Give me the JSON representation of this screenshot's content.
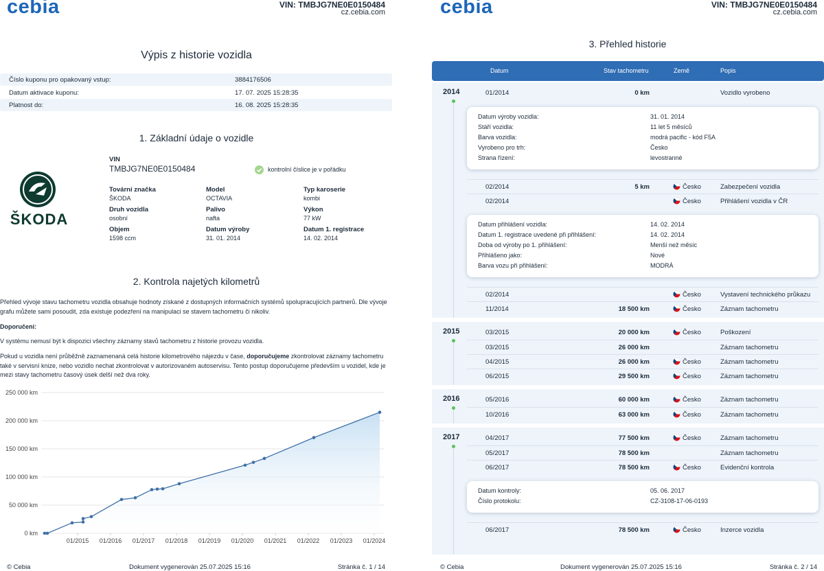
{
  "header": {
    "logo": "cebia",
    "vin": "VIN: TMBJG7NE0E0150484",
    "site": "cz.cebia.com"
  },
  "footer": {
    "copyright": "© Cebia",
    "generated": "Dokument vygenerován 25.07.2025 15:16",
    "pages": [
      "Stránka č. 1 / 14",
      "Stránka č. 2 / 14"
    ]
  },
  "page1": {
    "title": "Výpis z historie vozidla",
    "coupon_rows": [
      [
        "Číslo kuponu pro opakovaný vstup:",
        "3884176506"
      ],
      [
        "Datum aktivace kuponu:",
        "17. 07. 2025 15:28:35"
      ],
      [
        "Platnost do:",
        "16. 08. 2025 15:28:35"
      ]
    ],
    "section1": {
      "heading": "1. Základní údaje o vozidle",
      "logo_text": "ŠKODA",
      "vin_label": "VIN",
      "vin": "TMBJG7NE0E0150484",
      "vin_check": "kontrolní číslice je v pořádku",
      "fields": [
        {
          "label": "Tovární značka",
          "value": "ŠKODA"
        },
        {
          "label": "Model",
          "value": "OCTAVIA"
        },
        {
          "label": "Typ karoserie",
          "value": "kombi"
        },
        {
          "label": "Druh vozidla",
          "value": "osobní"
        },
        {
          "label": "Palivo",
          "value": "nafta"
        },
        {
          "label": "Výkon",
          "value": "77 kW"
        },
        {
          "label": "Objem",
          "value": "1598 ccm"
        },
        {
          "label": "Datum výroby",
          "value": "31. 01. 2014"
        },
        {
          "label": "Datum 1. registrace",
          "value": "14. 02. 2014"
        }
      ]
    },
    "section2": {
      "heading": "2. Kontrola najetých kilometrů",
      "p1": "Přehled vývoje stavu tachometru vozidla obsahuje hodnoty získané z dostupných informačních systémů spolupracujících partnerů. Dle vývoje grafu můžete sami posoudit, zda existuje podezření na manipulaci se stavem tachometru či nikoliv.",
      "recommendation": "Doporučení:",
      "p2": "V systému nemusí být k dispozici všechny záznamy stavů tachometru z historie provozu vozidla.",
      "p3": {
        "before": "Pokud u vozidla není průběžně zaznamenaná celá historie kilometrového nájezdu v čase, ",
        "bold": "doporučujeme",
        "after": " zkontrolovat záznamy tachometru také v servisní knize, nebo vozidlo nechat zkontrolovat v autorizovaném autoservisu. Tento postup doporučujeme především u vozidel, kde je mezi stavy tachometru časový úsek delší než dva roky."
      }
    }
  },
  "chart_data": {
    "type": "area",
    "x": [
      "01/2014",
      "02/2014",
      "11/2014",
      "03/2015",
      "03/2015",
      "06/2015",
      "05/2016",
      "10/2016",
      "04/2017",
      "06/2017",
      "08/2017",
      "02/2018",
      "02/2020",
      "05/2020",
      "09/2020",
      "03/2022",
      "03/2024"
    ],
    "values": [
      0,
      5,
      18500,
      20000,
      26000,
      29500,
      60000,
      63000,
      77500,
      78500,
      79000,
      88000,
      121000,
      126000,
      133000,
      170000,
      215000
    ],
    "color": "#3f6fa6",
    "xlim": [
      "01/2014",
      "04/2024"
    ],
    "xticks": [
      "01/2015",
      "01/2016",
      "01/2017",
      "01/2018",
      "01/2019",
      "01/2020",
      "01/2021",
      "01/2022",
      "01/2023",
      "01/2024"
    ],
    "ylim": [
      0,
      250000
    ],
    "yticks": [
      {
        "value": 0,
        "label": "0 km"
      },
      {
        "value": 50000,
        "label": "50 000 km"
      },
      {
        "value": 100000,
        "label": "100 000 km"
      },
      {
        "value": 150000,
        "label": "150 000 km"
      },
      {
        "value": 200000,
        "label": "200 000 km"
      },
      {
        "value": 250000,
        "label": "250 000 km"
      }
    ],
    "grid": true
  },
  "page2": {
    "title": "3. Přehled historie",
    "columns": [
      "Datum",
      "Stav tachometru",
      "Země",
      "Popis"
    ],
    "years": [
      {
        "year": "2014",
        "rows": [
          {
            "date": "01/2014",
            "km": "0 km",
            "desc": "Vozidlo vyrobeno",
            "details": [
              [
                "Datum výroby vozidla:",
                "31. 01. 2014"
              ],
              [
                "Stáří vozidla:",
                "11 let 5 měsíců"
              ],
              [
                "Barva vozidla:",
                "modrá pacific - kód F5A"
              ],
              [
                "Vyrobeno pro trh:",
                "Česko"
              ],
              [
                "Strana řízení:",
                "levostranné"
              ]
            ]
          },
          {
            "date": "02/2014",
            "km": "5 km",
            "country": "Česko",
            "desc": "Zabezpečení vozidla"
          },
          {
            "date": "02/2014",
            "country": "Česko",
            "desc": "Přihlášení vozidla v ČR",
            "details": [
              [
                "Datum přihlášení vozidla:",
                "14. 02. 2014"
              ],
              [
                "Datum 1. registrace uvedené při přihlášení:",
                "14. 02. 2014"
              ],
              [
                "Doba od výroby po 1. přihlášení:",
                "Menší než měsíc"
              ],
              [
                "Přihlášeno jako:",
                "Nové"
              ],
              [
                "Barva vozu při přihlášení:",
                "MODRÁ"
              ]
            ]
          },
          {
            "date": "02/2014",
            "country": "Česko",
            "desc": "Vystavení technického průkazu"
          },
          {
            "date": "11/2014",
            "km": "18 500 km",
            "country": "Česko",
            "desc": "Záznam tachometru"
          }
        ]
      },
      {
        "year": "2015",
        "rows": [
          {
            "date": "03/2015",
            "km": "20 000 km",
            "country": "Česko",
            "desc": "Poškození"
          },
          {
            "date": "03/2015",
            "km": "26 000 km",
            "desc": "Záznam tachometru"
          },
          {
            "date": "04/2015",
            "km": "26 000 km",
            "country": "Česko",
            "desc": "Záznam tachometru"
          },
          {
            "date": "06/2015",
            "km": "29 500 km",
            "country": "Česko",
            "desc": "Záznam tachometru"
          }
        ]
      },
      {
        "year": "2016",
        "rows": [
          {
            "date": "05/2016",
            "km": "60 000 km",
            "country": "Česko",
            "desc": "Záznam tachometru"
          },
          {
            "date": "10/2016",
            "km": "63 000 km",
            "country": "Česko",
            "desc": "Záznam tachometru"
          }
        ]
      },
      {
        "year": "2017",
        "rows": [
          {
            "date": "04/2017",
            "km": "77 500 km",
            "country": "Česko",
            "desc": "Záznam tachometru"
          },
          {
            "date": "05/2017",
            "km": "78 500 km",
            "desc": "Záznam tachometru"
          },
          {
            "date": "06/2017",
            "km": "78 500 km",
            "country": "Česko",
            "desc": "Evidenční kontrola",
            "details": [
              [
                "Datum kontroly:",
                "05. 06. 2017"
              ],
              [
                "Číslo protokolu:",
                "CZ-3108-17-06-0193"
              ]
            ]
          },
          {
            "date": "06/2017",
            "km": "78 500 km",
            "country": "Česko",
            "desc": "Inzerce vozidla"
          }
        ]
      }
    ]
  }
}
